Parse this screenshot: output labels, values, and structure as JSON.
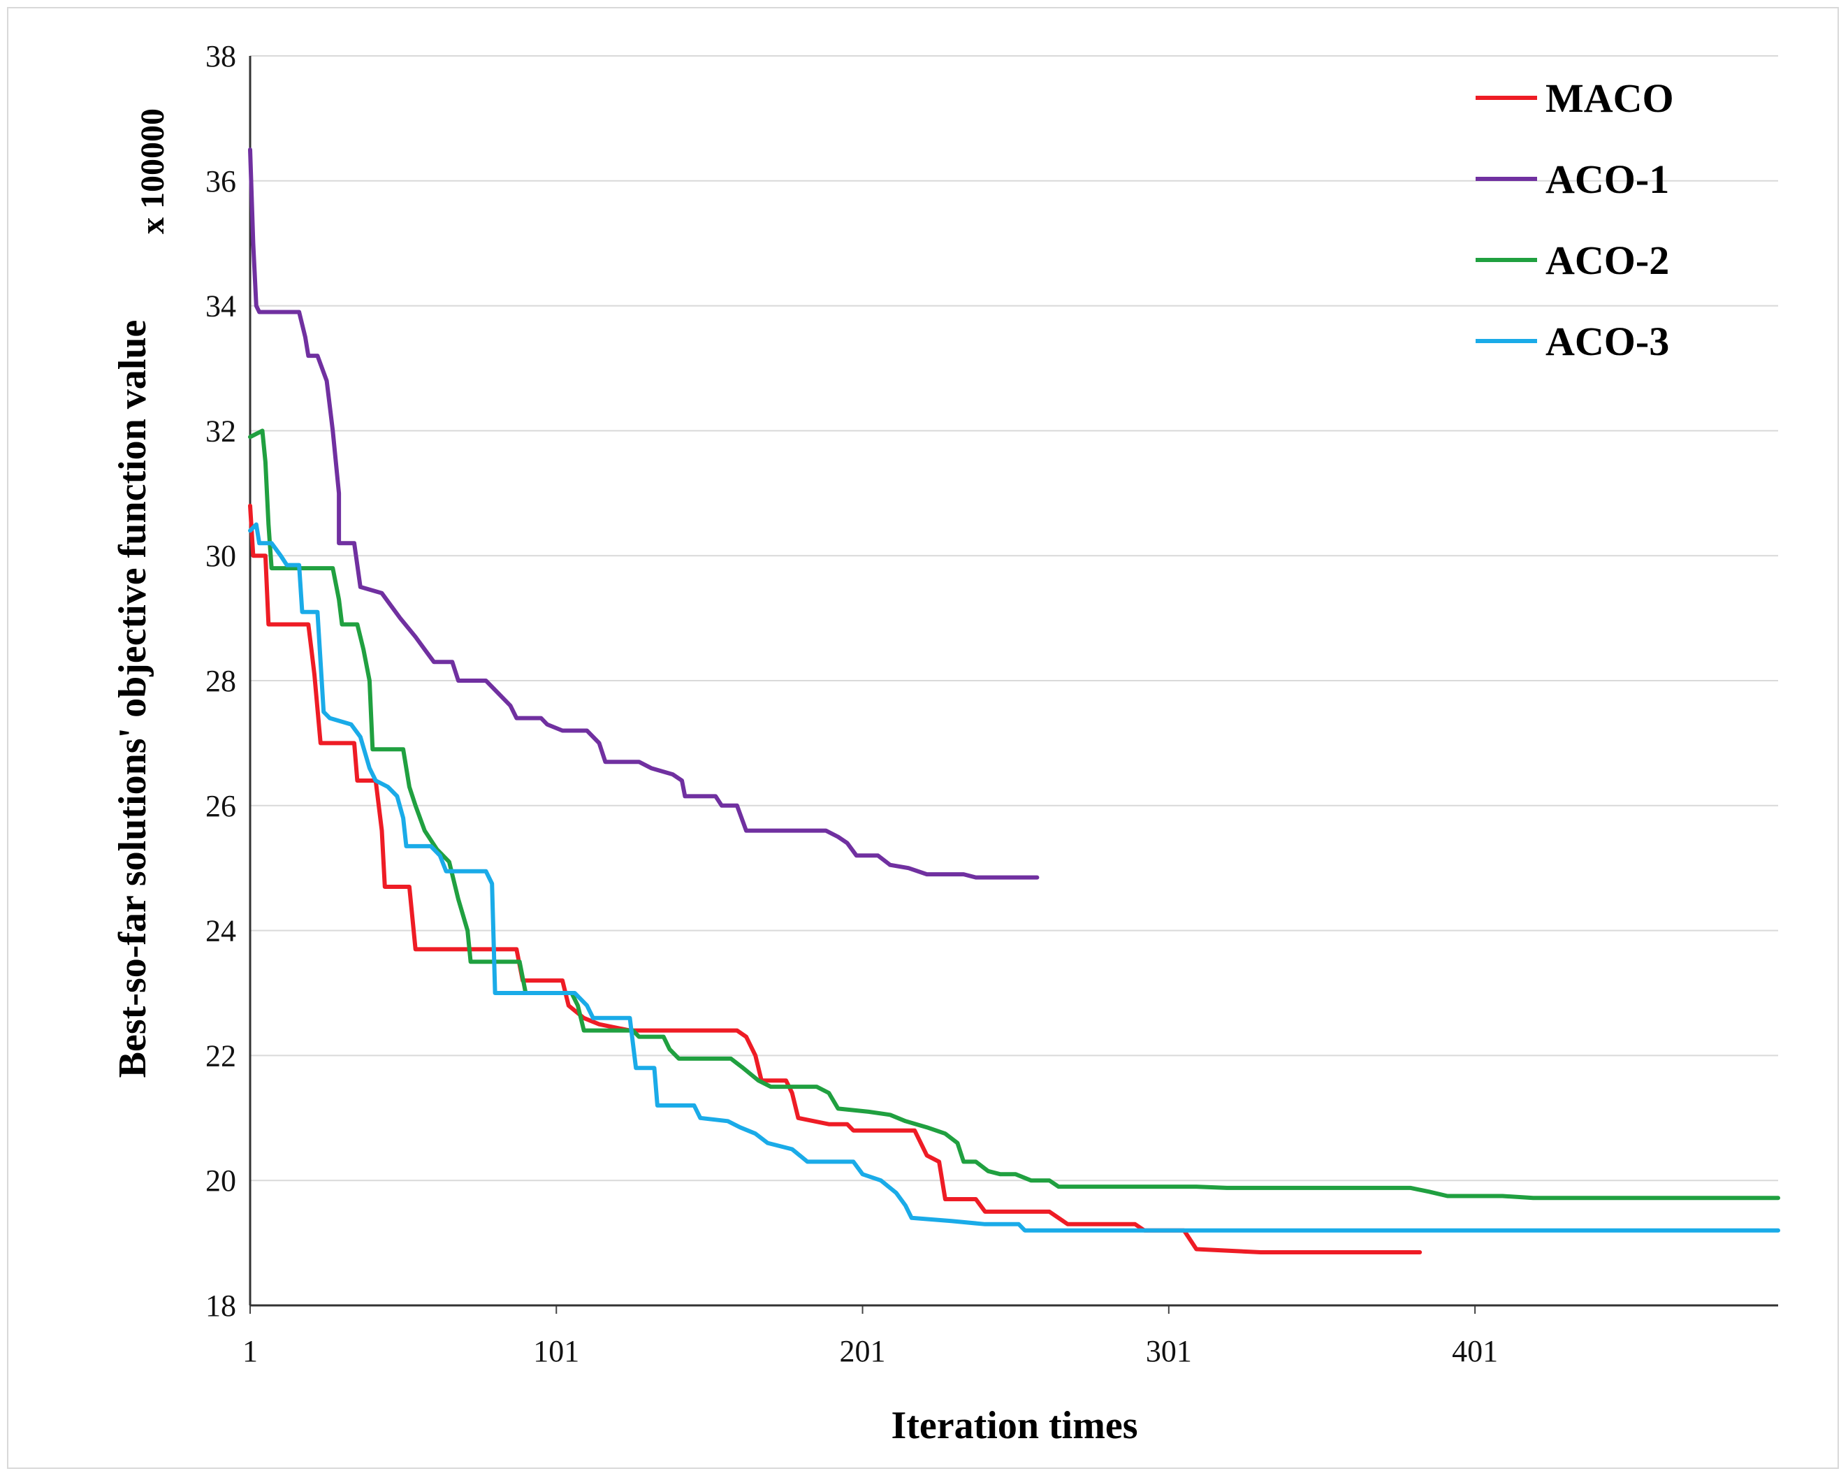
{
  "chart_data": {
    "type": "line",
    "xlabel": "Iteration times",
    "ylabel": "Best-so-far solutions' objective function value",
    "y_multiplier": "x 100000",
    "xlim": [
      1,
      500
    ],
    "ylim": [
      18,
      38
    ],
    "x_ticks": [
      "1",
      "101",
      "201",
      "301",
      "401"
    ],
    "y_ticks": [
      "18",
      "20",
      "22",
      "24",
      "26",
      "28",
      "30",
      "32",
      "34",
      "36",
      "38"
    ],
    "grid": "horizontal",
    "legend_position": "top-right",
    "series": [
      {
        "name": "MACO",
        "color": "#ee1c25",
        "points": [
          [
            1,
            30.8
          ],
          [
            2,
            30.0
          ],
          [
            6,
            30.0
          ],
          [
            7,
            28.9
          ],
          [
            20,
            28.9
          ],
          [
            21,
            28.5
          ],
          [
            22,
            28.1
          ],
          [
            24,
            27.0
          ],
          [
            35,
            27.0
          ],
          [
            36,
            26.4
          ],
          [
            42,
            26.4
          ],
          [
            44,
            25.6
          ],
          [
            45,
            24.7
          ],
          [
            53,
            24.7
          ],
          [
            55,
            23.7
          ],
          [
            88,
            23.7
          ],
          [
            90,
            23.2
          ],
          [
            103,
            23.2
          ],
          [
            105,
            22.8
          ],
          [
            110,
            22.6
          ],
          [
            115,
            22.5
          ],
          [
            125,
            22.4
          ],
          [
            160,
            22.4
          ],
          [
            163,
            22.3
          ],
          [
            166,
            22.0
          ],
          [
            168,
            21.6
          ],
          [
            176,
            21.6
          ],
          [
            178,
            21.4
          ],
          [
            180,
            21.0
          ],
          [
            190,
            20.9
          ],
          [
            196,
            20.9
          ],
          [
            198,
            20.8
          ],
          [
            218,
            20.8
          ],
          [
            222,
            20.4
          ],
          [
            226,
            20.3
          ],
          [
            228,
            19.7
          ],
          [
            238,
            19.7
          ],
          [
            241,
            19.5
          ],
          [
            262,
            19.5
          ],
          [
            268,
            19.3
          ],
          [
            290,
            19.3
          ],
          [
            293,
            19.2
          ],
          [
            306,
            19.2
          ],
          [
            310,
            18.9
          ],
          [
            331,
            18.85
          ],
          [
            383,
            18.85
          ]
        ]
      },
      {
        "name": "ACO-1",
        "color": "#7030a0",
        "points": [
          [
            1,
            36.5
          ],
          [
            2,
            35.0
          ],
          [
            3,
            34.0
          ],
          [
            4,
            33.9
          ],
          [
            17,
            33.9
          ],
          [
            19,
            33.5
          ],
          [
            20,
            33.2
          ],
          [
            23,
            33.2
          ],
          [
            26,
            32.8
          ],
          [
            28,
            32.0
          ],
          [
            30,
            31.0
          ],
          [
            30,
            30.2
          ],
          [
            35,
            30.2
          ],
          [
            37,
            29.5
          ],
          [
            44,
            29.4
          ],
          [
            47,
            29.2
          ],
          [
            50,
            29.0
          ],
          [
            55,
            28.7
          ],
          [
            58,
            28.5
          ],
          [
            61,
            28.3
          ],
          [
            67,
            28.3
          ],
          [
            69,
            28.0
          ],
          [
            78,
            28.0
          ],
          [
            82,
            27.8
          ],
          [
            86,
            27.6
          ],
          [
            88,
            27.4
          ],
          [
            96,
            27.4
          ],
          [
            98,
            27.3
          ],
          [
            103,
            27.2
          ],
          [
            111,
            27.2
          ],
          [
            115,
            27.0
          ],
          [
            117,
            26.7
          ],
          [
            128,
            26.7
          ],
          [
            132,
            26.6
          ],
          [
            139,
            26.5
          ],
          [
            142,
            26.4
          ],
          [
            143,
            26.15
          ],
          [
            153,
            26.15
          ],
          [
            155,
            26.0
          ],
          [
            160,
            26.0
          ],
          [
            163,
            25.6
          ],
          [
            189,
            25.6
          ],
          [
            193,
            25.5
          ],
          [
            196,
            25.4
          ],
          [
            199,
            25.2
          ],
          [
            206,
            25.2
          ],
          [
            210,
            25.05
          ],
          [
            216,
            25.0
          ],
          [
            222,
            24.9
          ],
          [
            234,
            24.9
          ],
          [
            238,
            24.85
          ],
          [
            258,
            24.85
          ]
        ]
      },
      {
        "name": "ACO-2",
        "color": "#20a040",
        "points": [
          [
            1,
            31.9
          ],
          [
            5,
            32.0
          ],
          [
            6,
            31.5
          ],
          [
            7,
            30.5
          ],
          [
            8,
            29.8
          ],
          [
            28,
            29.8
          ],
          [
            30,
            29.3
          ],
          [
            31,
            28.9
          ],
          [
            36,
            28.9
          ],
          [
            38,
            28.5
          ],
          [
            40,
            28.0
          ],
          [
            41,
            26.9
          ],
          [
            51,
            26.9
          ],
          [
            53,
            26.3
          ],
          [
            55,
            26.0
          ],
          [
            58,
            25.6
          ],
          [
            62,
            25.3
          ],
          [
            66,
            25.1
          ],
          [
            69,
            24.5
          ],
          [
            72,
            24.0
          ],
          [
            73,
            23.5
          ],
          [
            89,
            23.5
          ],
          [
            91,
            23.0
          ],
          [
            106,
            23.0
          ],
          [
            108,
            22.8
          ],
          [
            110,
            22.4
          ],
          [
            126,
            22.4
          ],
          [
            128,
            22.3
          ],
          [
            136,
            22.3
          ],
          [
            138,
            22.1
          ],
          [
            141,
            21.95
          ],
          [
            158,
            21.95
          ],
          [
            162,
            21.8
          ],
          [
            167,
            21.6
          ],
          [
            171,
            21.5
          ],
          [
            186,
            21.5
          ],
          [
            190,
            21.4
          ],
          [
            193,
            21.15
          ],
          [
            203,
            21.1
          ],
          [
            210,
            21.05
          ],
          [
            215,
            20.95
          ],
          [
            222,
            20.85
          ],
          [
            228,
            20.75
          ],
          [
            232,
            20.6
          ],
          [
            234,
            20.3
          ],
          [
            238,
            20.3
          ],
          [
            242,
            20.15
          ],
          [
            246,
            20.1
          ],
          [
            251,
            20.1
          ],
          [
            256,
            20.0
          ],
          [
            262,
            20.0
          ],
          [
            265,
            19.9
          ],
          [
            280,
            19.9
          ],
          [
            310,
            19.9
          ],
          [
            320,
            19.88
          ],
          [
            364,
            19.88
          ],
          [
            380,
            19.88
          ],
          [
            386,
            19.82
          ],
          [
            392,
            19.75
          ],
          [
            410,
            19.75
          ],
          [
            420,
            19.72
          ],
          [
            500,
            19.72
          ]
        ]
      },
      {
        "name": "ACO-3",
        "color": "#1aabe8",
        "points": [
          [
            1,
            30.4
          ],
          [
            3,
            30.5
          ],
          [
            4,
            30.2
          ],
          [
            8,
            30.2
          ],
          [
            11,
            30.0
          ],
          [
            13,
            29.85
          ],
          [
            17,
            29.85
          ],
          [
            18,
            29.1
          ],
          [
            23,
            29.1
          ],
          [
            24,
            28.3
          ],
          [
            25,
            27.5
          ],
          [
            27,
            27.4
          ],
          [
            34,
            27.3
          ],
          [
            37,
            27.1
          ],
          [
            40,
            26.6
          ],
          [
            42,
            26.4
          ],
          [
            46,
            26.3
          ],
          [
            49,
            26.15
          ],
          [
            51,
            25.8
          ],
          [
            52,
            25.35
          ],
          [
            60,
            25.35
          ],
          [
            63,
            25.2
          ],
          [
            65,
            24.95
          ],
          [
            78,
            24.95
          ],
          [
            80,
            24.75
          ],
          [
            81,
            23.0
          ],
          [
            100,
            23.0
          ],
          [
            107,
            23.0
          ],
          [
            111,
            22.8
          ],
          [
            113,
            22.6
          ],
          [
            125,
            22.6
          ],
          [
            126,
            22.2
          ],
          [
            127,
            21.8
          ],
          [
            133,
            21.8
          ],
          [
            134,
            21.2
          ],
          [
            146,
            21.2
          ],
          [
            148,
            21.0
          ],
          [
            157,
            20.95
          ],
          [
            161,
            20.85
          ],
          [
            166,
            20.75
          ],
          [
            170,
            20.6
          ],
          [
            178,
            20.5
          ],
          [
            183,
            20.3
          ],
          [
            198,
            20.3
          ],
          [
            201,
            20.1
          ],
          [
            207,
            20.0
          ],
          [
            212,
            19.8
          ],
          [
            215,
            19.6
          ],
          [
            217,
            19.4
          ],
          [
            230,
            19.35
          ],
          [
            241,
            19.3
          ],
          [
            252,
            19.3
          ],
          [
            254,
            19.2
          ],
          [
            264,
            19.2
          ],
          [
            500,
            19.2
          ]
        ]
      }
    ]
  }
}
